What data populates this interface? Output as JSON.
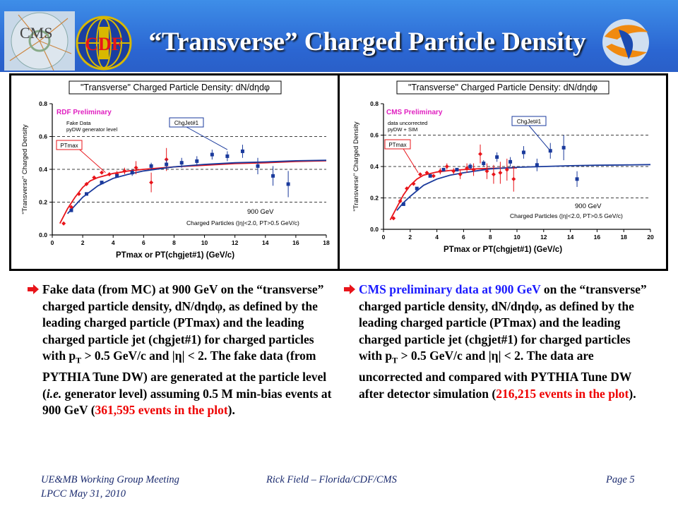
{
  "slide": {
    "title": "“Transverse” Charged Particle Density",
    "logo_left_text": "CMS",
    "logo_mid_text": "CDF"
  },
  "chart_data": [
    {
      "type": "scatter",
      "title": "\"Transverse\" Charged Particle Density: dN/dηdφ",
      "xlabel": "PTmax or PT(chgjet#1)  (GeV/c)",
      "ylabel": "\"Transverse\" Charged Density",
      "xlim": [
        0,
        18
      ],
      "ylim": [
        0,
        0.8
      ],
      "xticks": [
        "0",
        "2",
        "4",
        "6",
        "8",
        "10",
        "12",
        "14",
        "16",
        "18"
      ],
      "yticks": [
        "0.0",
        "0.2",
        "0.4",
        "0.6",
        "0.8"
      ],
      "grid": "dashed horizontal",
      "annotations": {
        "preliminary": "RDF Preliminary",
        "note_line1": "Fake Data",
        "note_line2": "pyDW generator level",
        "energy": "900 GeV",
        "cuts": "Charged Particles (|η|<2.0, PT>0.5 GeV/c)",
        "callout_ptmax": "PTmax",
        "callout_chgjet": "ChgJet#1"
      },
      "series": [
        {
          "name": "PTmax",
          "color": "#e8141a",
          "x": [
            0.75,
            1.25,
            1.75,
            2.25,
            2.75,
            3.25,
            3.75,
            4.25,
            4.75,
            5.5,
            6.5,
            7.5
          ],
          "y": [
            0.07,
            0.17,
            0.25,
            0.31,
            0.35,
            0.38,
            0.37,
            0.37,
            0.39,
            0.41,
            0.32,
            0.46
          ],
          "err": [
            0,
            0,
            0,
            0,
            0,
            0,
            0,
            0.02,
            0.02,
            0.04,
            0.06,
            0.07
          ]
        },
        {
          "name": "ChgJet#1",
          "color": "#1a3a9c",
          "x": [
            1.25,
            2.25,
            3.25,
            4.25,
            5.25,
            6.5,
            7.5,
            8.5,
            9.5,
            10.5,
            11.5,
            12.5,
            13.5,
            14.5,
            15.5
          ],
          "y": [
            0.15,
            0.25,
            0.32,
            0.36,
            0.38,
            0.42,
            0.43,
            0.44,
            0.45,
            0.49,
            0.48,
            0.51,
            0.42,
            0.36,
            0.31
          ],
          "err": [
            0,
            0,
            0,
            0.01,
            0.02,
            0.02,
            0.03,
            0.03,
            0.03,
            0.03,
            0.03,
            0.04,
            0.05,
            0.06,
            0.08
          ]
        },
        {
          "name": "PTmax curve",
          "color": "#e8141a",
          "x": [
            0.5,
            1,
            1.5,
            2,
            2.5,
            3,
            4,
            5,
            6,
            8,
            10,
            12,
            14,
            16,
            18
          ],
          "y": [
            0.07,
            0.16,
            0.23,
            0.29,
            0.33,
            0.35,
            0.375,
            0.39,
            0.4,
            0.415,
            0.425,
            0.435,
            0.44,
            0.448,
            0.452
          ]
        },
        {
          "name": "ChgJet#1 curve",
          "color": "#1a3a9c",
          "x": [
            1,
            1.5,
            2,
            3,
            4,
            5,
            6,
            8,
            10,
            12,
            14,
            16,
            18
          ],
          "y": [
            0.13,
            0.18,
            0.23,
            0.3,
            0.345,
            0.37,
            0.39,
            0.415,
            0.43,
            0.44,
            0.445,
            0.452,
            0.455
          ]
        }
      ]
    },
    {
      "type": "scatter",
      "title": "\"Transverse\" Charged Particle Density: dN/dηdφ",
      "xlabel": "PTmax or PT(chgjet#1)  (GeV/c)",
      "ylabel": "\"Transverse\" Charged Density",
      "xlim": [
        0,
        20
      ],
      "ylim": [
        0,
        0.8
      ],
      "xticks": [
        "0",
        "2",
        "4",
        "6",
        "8",
        "10",
        "12",
        "14",
        "16",
        "18",
        "20"
      ],
      "yticks": [
        "0.0",
        "0.2",
        "0.4",
        "0.6",
        "0.8"
      ],
      "grid": "dashed horizontal",
      "annotations": {
        "preliminary": "CMS Preliminary",
        "note_line1": "data uncorrected",
        "note_line2": "pyDW + SIM",
        "energy": "900 GeV",
        "cuts": "Charged Particles (|η|<2.0, PT>0.5 GeV/c)",
        "callout_ptmax": "PTmax",
        "callout_chgjet": "ChgJet#1"
      },
      "series": [
        {
          "name": "PTmax",
          "color": "#e8141a",
          "x": [
            0.75,
            1.25,
            1.75,
            2.25,
            2.75,
            3.25,
            3.75,
            4.25,
            4.75,
            5.25,
            5.75,
            6.25,
            6.75,
            7.25,
            7.75,
            8.25,
            8.75,
            9.25,
            9.75
          ],
          "y": [
            0.07,
            0.18,
            0.26,
            0.29,
            0.35,
            0.36,
            0.34,
            0.37,
            0.4,
            0.37,
            0.35,
            0.39,
            0.38,
            0.48,
            0.37,
            0.35,
            0.36,
            0.38,
            0.32
          ],
          "err": [
            0,
            0,
            0,
            0.01,
            0.01,
            0.01,
            0.01,
            0.02,
            0.02,
            0.02,
            0.03,
            0.03,
            0.04,
            0.06,
            0.05,
            0.06,
            0.07,
            0.07,
            0.08
          ]
        },
        {
          "name": "ChgJet#1",
          "color": "#1a3a9c",
          "x": [
            1.5,
            2.5,
            3.5,
            4.5,
            5.5,
            6.5,
            7.5,
            8.5,
            9.5,
            10.5,
            11.5,
            12.5,
            13.5,
            14.5
          ],
          "y": [
            0.16,
            0.26,
            0.34,
            0.38,
            0.38,
            0.4,
            0.42,
            0.46,
            0.43,
            0.49,
            0.41,
            0.5,
            0.52,
            0.32
          ],
          "err": [
            0,
            0,
            0,
            0.01,
            0.01,
            0.02,
            0.02,
            0.03,
            0.03,
            0.04,
            0.04,
            0.05,
            0.08,
            0.05
          ]
        },
        {
          "name": "PTmax curve",
          "color": "#e8141a",
          "x": [
            0.5,
            1,
            1.5,
            2,
            2.5,
            3,
            4,
            5,
            6,
            7,
            8,
            9,
            10
          ],
          "y": [
            0.06,
            0.14,
            0.22,
            0.28,
            0.32,
            0.345,
            0.365,
            0.375,
            0.38,
            0.385,
            0.388,
            0.39,
            0.392
          ]
        },
        {
          "name": "ChgJet#1 curve",
          "color": "#1a3a9c",
          "x": [
            1,
            1.5,
            2,
            3,
            4,
            5,
            6,
            8,
            10,
            12,
            14,
            16,
            18,
            20
          ],
          "y": [
            0.12,
            0.17,
            0.21,
            0.28,
            0.32,
            0.345,
            0.36,
            0.385,
            0.395,
            0.4,
            0.405,
            0.408,
            0.41,
            0.412
          ]
        }
      ]
    }
  ],
  "left_text": {
    "t1": "Fake data (from MC) at 900 GeV on the “transverse” charged particle density, dN/dηdφ, as defined by the leading charged particle (PTmax) and the leading charged particle jet (chgjet#1) for charged particles with p",
    "sub": "T",
    "t2": " > 0.5 GeV/c and |η| < 2.  The fake data (from PYTHIA Tune DW) are generated at the particle level (",
    "ie": "i.e.",
    "t3": " generator level) assuming 0.5 M min-bias events at 900 GeV (",
    "red": "361,595 events in the plot",
    "t4": ")."
  },
  "right_text": {
    "blue": "CMS preliminary data at  900 GeV",
    "t1": " on the “transverse” charged particle density, dN/dηdφ, as defined by the leading charged particle (PTmax) and the leading charged particle jet (chgjet#1) for charged particles with p",
    "sub": "T",
    "t2": " > 0.5 GeV/c and |η| < 2.  The data are uncorrected and compared with PYTHIA Tune DW after detector simulation (",
    "red": "216,215 events in the plot",
    "t3": ")."
  },
  "footer": {
    "left_line1": "UE&MB Working Group Meeting",
    "left_line2": "LPCC  May 31, 2010",
    "center": "Rick Field – Florida/CDF/CMS",
    "right": "Page 5"
  },
  "colors": {
    "header": "#2b66d2",
    "ptmax": "#e8141a",
    "chgjet": "#1a3a9c",
    "highlight_red": "#e00000",
    "highlight_blue": "#1a1aff"
  }
}
